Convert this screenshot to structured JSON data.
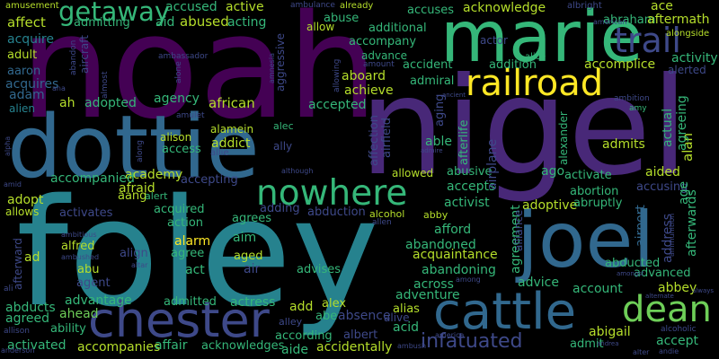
{
  "words": [
    {
      "text": "noah",
      "color": "#440154"
    },
    {
      "text": "nigel",
      "color": "#482878"
    },
    {
      "text": "foley",
      "color": "#26828e"
    },
    {
      "text": "dottie",
      "color": "#31688e"
    },
    {
      "text": "marie",
      "color": "#35b779"
    },
    {
      "text": "joel",
      "color": "#31688e"
    },
    {
      "text": "chester",
      "color": "#3e4989"
    },
    {
      "text": "cattle",
      "color": "#31688e"
    },
    {
      "text": "railroad",
      "color": "#fde725"
    },
    {
      "text": "trail",
      "color": "#3e4989"
    },
    {
      "text": "nowhere",
      "color": "#35b779"
    },
    {
      "text": "getaway",
      "color": "#35b779"
    },
    {
      "text": "dean",
      "color": "#6ece58"
    },
    {
      "text": "infatuated",
      "color": "#3e4989"
    },
    {
      "text": "affect",
      "color": "#b5de2b"
    },
    {
      "text": "admitting",
      "color": "#35b779"
    },
    {
      "text": "aid",
      "color": "#35b779"
    },
    {
      "text": "abused",
      "color": "#b5de2b"
    },
    {
      "text": "accused",
      "color": "#35b779"
    },
    {
      "text": "active",
      "color": "#b5de2b"
    },
    {
      "text": "acquire",
      "color": "#26828e"
    },
    {
      "text": "adult",
      "color": "#b5de2b"
    },
    {
      "text": "aaron",
      "color": "#31688e"
    },
    {
      "text": "acquires",
      "color": "#31688e"
    },
    {
      "text": "adam",
      "color": "#31688e"
    },
    {
      "text": "alien",
      "color": "#26828e"
    },
    {
      "text": "ah",
      "color": "#b5de2b"
    },
    {
      "text": "adopted",
      "color": "#35b779"
    },
    {
      "text": "agency",
      "color": "#35b779"
    },
    {
      "text": "african",
      "color": "#b5de2b"
    },
    {
      "text": "alison",
      "color": "#b5de2b"
    },
    {
      "text": "access",
      "color": "#35b779"
    },
    {
      "text": "addict",
      "color": "#b5de2b"
    },
    {
      "text": "alamein",
      "color": "#b5de2b"
    },
    {
      "text": "acting",
      "color": "#35b779"
    },
    {
      "text": "acknowledge",
      "color": "#b5de2b"
    },
    {
      "text": "accuses",
      "color": "#35b779"
    },
    {
      "text": "abuse",
      "color": "#35b779"
    },
    {
      "text": "additional",
      "color": "#35b779"
    },
    {
      "text": "accompany",
      "color": "#35b779"
    },
    {
      "text": "advance",
      "color": "#35b779"
    },
    {
      "text": "accident",
      "color": "#35b779"
    },
    {
      "text": "addition",
      "color": "#35b779"
    },
    {
      "text": "aboard",
      "color": "#b5de2b"
    },
    {
      "text": "achieve",
      "color": "#b5de2b"
    },
    {
      "text": "admiral",
      "color": "#35b779"
    },
    {
      "text": "accepted",
      "color": "#35b779"
    },
    {
      "text": "abraham",
      "color": "#35b779"
    },
    {
      "text": "aftermath",
      "color": "#b5de2b"
    },
    {
      "text": "ace",
      "color": "#b5de2b"
    },
    {
      "text": "accomplice",
      "color": "#b5de2b"
    },
    {
      "text": "activity",
      "color": "#35b779"
    },
    {
      "text": "alerted",
      "color": "#3e4989"
    },
    {
      "text": "academy",
      "color": "#b5de2b"
    },
    {
      "text": "accompanied",
      "color": "#35b779"
    },
    {
      "text": "afraid",
      "color": "#b5de2b"
    },
    {
      "text": "accepting",
      "color": "#3e4989"
    },
    {
      "text": "adopt",
      "color": "#b5de2b"
    },
    {
      "text": "allows",
      "color": "#b5de2b"
    },
    {
      "text": "aang",
      "color": "#b5de2b"
    },
    {
      "text": "alert",
      "color": "#35b779"
    },
    {
      "text": "activates",
      "color": "#3e4989"
    },
    {
      "text": "acquired",
      "color": "#35b779"
    },
    {
      "text": "action",
      "color": "#35b779"
    },
    {
      "text": "adding",
      "color": "#3e4989"
    },
    {
      "text": "abduction",
      "color": "#3e4989"
    },
    {
      "text": "alcohol",
      "color": "#b5de2b"
    },
    {
      "text": "abby",
      "color": "#b5de2b"
    },
    {
      "text": "able",
      "color": "#35b779"
    },
    {
      "text": "abusive",
      "color": "#35b779"
    },
    {
      "text": "accepts",
      "color": "#35b779"
    },
    {
      "text": "activist",
      "color": "#35b779"
    },
    {
      "text": "adoptive",
      "color": "#b5de2b"
    },
    {
      "text": "allowed",
      "color": "#b5de2b"
    },
    {
      "text": "ago",
      "color": "#35b779"
    },
    {
      "text": "activate",
      "color": "#35b779"
    },
    {
      "text": "abortion",
      "color": "#35b779"
    },
    {
      "text": "abruptly",
      "color": "#35b779"
    },
    {
      "text": "accusing",
      "color": "#3e4989"
    },
    {
      "text": "admits",
      "color": "#b5de2b"
    },
    {
      "text": "aided",
      "color": "#b5de2b"
    },
    {
      "text": "alfred",
      "color": "#b5de2b"
    },
    {
      "text": "alarm",
      "color": "#fde725"
    },
    {
      "text": "aim",
      "color": "#35b779"
    },
    {
      "text": "agrees",
      "color": "#35b779"
    },
    {
      "text": "agree",
      "color": "#35b779"
    },
    {
      "text": "align",
      "color": "#3e4989"
    },
    {
      "text": "afford",
      "color": "#35b779"
    },
    {
      "text": "abandoned",
      "color": "#35b779"
    },
    {
      "text": "acquaintance",
      "color": "#b5de2b"
    },
    {
      "text": "abandoning",
      "color": "#35b779"
    },
    {
      "text": "abu",
      "color": "#b5de2b"
    },
    {
      "text": "aged",
      "color": "#b5de2b"
    },
    {
      "text": "act",
      "color": "#35b779"
    },
    {
      "text": "air",
      "color": "#3e4989"
    },
    {
      "text": "advises",
      "color": "#35b779"
    },
    {
      "text": "agent",
      "color": "#3e4989"
    },
    {
      "text": "across",
      "color": "#35b779"
    },
    {
      "text": "advice",
      "color": "#35b779"
    },
    {
      "text": "abducted",
      "color": "#35b779"
    },
    {
      "text": "advanced",
      "color": "#35b779"
    },
    {
      "text": "account",
      "color": "#35b779"
    },
    {
      "text": "abbey",
      "color": "#b5de2b"
    },
    {
      "text": "advantage",
      "color": "#35b779"
    },
    {
      "text": "admitted",
      "color": "#35b779"
    },
    {
      "text": "actress",
      "color": "#35b779"
    },
    {
      "text": "adventure",
      "color": "#35b779"
    },
    {
      "text": "abducts",
      "color": "#35b779"
    },
    {
      "text": "ahead",
      "color": "#6ece58"
    },
    {
      "text": "agreed",
      "color": "#35b779"
    },
    {
      "text": "ability",
      "color": "#35b779"
    },
    {
      "text": "alex",
      "color": "#b5de2b"
    },
    {
      "text": "absence",
      "color": "#3e4989"
    },
    {
      "text": "add",
      "color": "#b5de2b"
    },
    {
      "text": "abe",
      "color": "#35b779"
    },
    {
      "text": "alias",
      "color": "#b5de2b"
    },
    {
      "text": "alive",
      "color": "#3e4989"
    },
    {
      "text": "activated",
      "color": "#35b779"
    },
    {
      "text": "accompanies",
      "color": "#b5de2b"
    },
    {
      "text": "affair",
      "color": "#35b779"
    },
    {
      "text": "acknowledges",
      "color": "#35b779"
    },
    {
      "text": "according",
      "color": "#35b779"
    },
    {
      "text": "albert",
      "color": "#3e4989"
    },
    {
      "text": "accidentally",
      "color": "#b5de2b"
    },
    {
      "text": "acid",
      "color": "#35b779"
    },
    {
      "text": "aide",
      "color": "#35b779"
    },
    {
      "text": "abigail",
      "color": "#b5de2b"
    },
    {
      "text": "admit",
      "color": "#35b779"
    },
    {
      "text": "accept",
      "color": "#35b779"
    },
    {
      "text": "ad",
      "color": "#b5de2b"
    },
    {
      "text": "allow",
      "color": "#b5de2b"
    },
    {
      "text": "ambulance",
      "color": "#3e4989"
    },
    {
      "text": "already",
      "color": "#b5de2b"
    },
    {
      "text": "albright",
      "color": "#3e4989"
    },
    {
      "text": "american",
      "color": "#3e4989"
    },
    {
      "text": "alongside",
      "color": "#b5de2b"
    },
    {
      "text": "amusement",
      "color": "#b5de2b"
    },
    {
      "text": "ambassador",
      "color": "#3e4989"
    },
    {
      "text": "alice",
      "color": "#35b779"
    },
    {
      "text": "amount",
      "color": "#3e4989"
    },
    {
      "text": "ambition",
      "color": "#3e4989"
    },
    {
      "text": "amy",
      "color": "#35b779"
    },
    {
      "text": "amulet",
      "color": "#3e4989"
    },
    {
      "text": "alec",
      "color": "#35b779"
    },
    {
      "text": "allie",
      "color": "#3e4989"
    },
    {
      "text": "ally",
      "color": "#3e4989"
    },
    {
      "text": "ana",
      "color": "#3e4989"
    },
    {
      "text": "amid",
      "color": "#3e4989"
    },
    {
      "text": "although",
      "color": "#3e4989"
    },
    {
      "text": "allen",
      "color": "#3e4989"
    },
    {
      "text": "ambitious",
      "color": "#3e4989"
    },
    {
      "text": "ambushed",
      "color": "#3e4989"
    },
    {
      "text": "altar",
      "color": "#3e4989"
    },
    {
      "text": "among",
      "color": "#3e4989"
    },
    {
      "text": "amongst",
      "color": "#3e4989"
    },
    {
      "text": "ambush",
      "color": "#3e4989"
    },
    {
      "text": "america",
      "color": "#3e4989"
    },
    {
      "text": "andie",
      "color": "#3e4989"
    },
    {
      "text": "alter",
      "color": "#3e4989"
    },
    {
      "text": "alcoholic",
      "color": "#3e4989"
    },
    {
      "text": "alternate",
      "color": "#3e4989"
    },
    {
      "text": "always",
      "color": "#3e4989"
    },
    {
      "text": "andrea",
      "color": "#3e4989"
    },
    {
      "text": "allison",
      "color": "#3e4989"
    },
    {
      "text": "anderson",
      "color": "#3e4989"
    },
    {
      "text": "ali",
      "color": "#3e4989"
    },
    {
      "text": "alley",
      "color": "#3e4989"
    },
    {
      "text": "ancient",
      "color": "#3e4989"
    },
    {
      "text": "admire",
      "color": "#3e4989"
    },
    {
      "text": "alpha",
      "color": "#3e4989"
    },
    {
      "text": "alan",
      "color": "#b5de2b"
    },
    {
      "text": "actual",
      "color": "#35b779"
    },
    {
      "text": "agreeing",
      "color": "#35b779"
    },
    {
      "text": "age",
      "color": "#35b779"
    },
    {
      "text": "afterwards",
      "color": "#35b779"
    },
    {
      "text": "address",
      "color": "#3e4989"
    },
    {
      "text": "agreement",
      "color": "#35b779"
    },
    {
      "text": "airport",
      "color": "#31688e"
    },
    {
      "text": "airplane",
      "color": "#3e4989"
    },
    {
      "text": "afterlife",
      "color": "#35b779"
    },
    {
      "text": "airfield",
      "color": "#3e4989"
    },
    {
      "text": "affection",
      "color": "#3e4989"
    },
    {
      "text": "aging",
      "color": "#3e4989"
    },
    {
      "text": "alliance",
      "color": "#3e4989"
    },
    {
      "text": "alexander",
      "color": "#35b779"
    },
    {
      "text": "ammunition",
      "color": "#3e4989"
    },
    {
      "text": "amnesia",
      "color": "#3e4989"
    },
    {
      "text": "alone",
      "color": "#3e4989"
    },
    {
      "text": "allowing",
      "color": "#3e4989"
    },
    {
      "text": "aggressive",
      "color": "#3e4989"
    },
    {
      "text": "abandon",
      "color": "#3e4989"
    },
    {
      "text": "aircraft",
      "color": "#3e4989"
    },
    {
      "text": "along",
      "color": "#3e4989"
    },
    {
      "text": "almost",
      "color": "#3e4989"
    },
    {
      "text": "afterward",
      "color": "#3e4989"
    },
    {
      "text": "actor",
      "color": "#3e4989"
    }
  ]
}
